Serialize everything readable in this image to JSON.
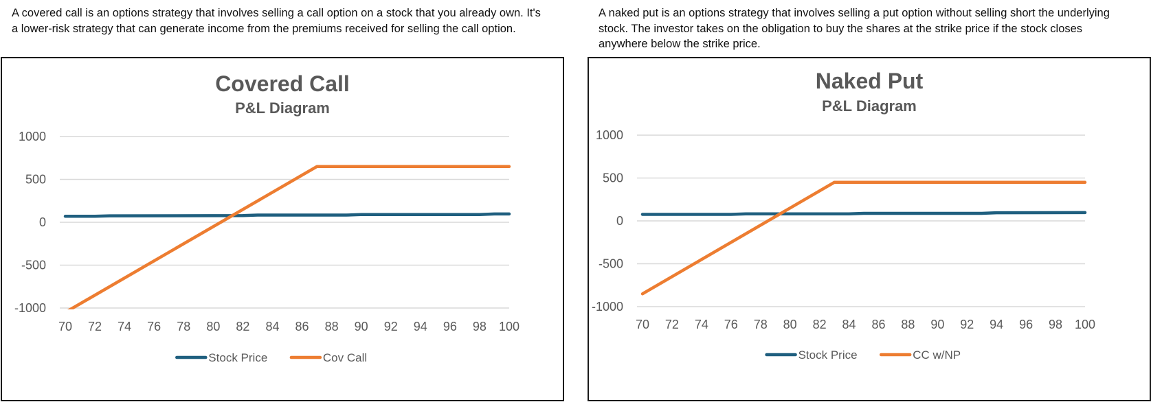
{
  "descriptions": {
    "left": "A covered call is an options strategy that involves selling a call option on a stock that you already own. It's a lower-risk strategy that can generate income from the premiums received for selling the call option.",
    "right": "A naked put is an options strategy that involves selling a put option without selling short the underlying stock. The investor takes on the obligation to buy the shares at the strike price if the stock closes anywhere below the strike price."
  },
  "colors": {
    "stock": "#1f5f7f",
    "strategy": "#ed7d31",
    "grid": "#d9d9d9",
    "text": "#595959"
  },
  "chart_data": [
    {
      "type": "line",
      "title": "Covered Call",
      "subtitle": "P&L Diagram",
      "xlabel": "",
      "ylabel": "",
      "xlim": [
        70,
        100
      ],
      "ylim": [
        -1000,
        1000
      ],
      "x_ticks": [
        "70",
        "72",
        "74",
        "76",
        "78",
        "80",
        "82",
        "84",
        "86",
        "88",
        "90",
        "92",
        "94",
        "96",
        "98",
        "100"
      ],
      "y_ticks": [
        "1000",
        "500",
        "0",
        "-500",
        "-1000"
      ],
      "grid": true,
      "legend_position": "bottom",
      "series": [
        {
          "name": "Stock Price",
          "color": "#1f5f7f",
          "x": [
            70,
            72,
            73,
            82,
            83,
            89,
            90,
            98,
            99,
            100
          ],
          "y": [
            70,
            70,
            75,
            78,
            84,
            84,
            90,
            90,
            97,
            97
          ]
        },
        {
          "name": "Cov Call",
          "color": "#ed7d31",
          "x": [
            70,
            87,
            100
          ],
          "y": [
            -1050,
            650,
            650
          ]
        }
      ]
    },
    {
      "type": "line",
      "title": "Naked Put",
      "subtitle": "P&L Diagram",
      "xlabel": "",
      "ylabel": "",
      "xlim": [
        70,
        100
      ],
      "ylim": [
        -1000,
        1000
      ],
      "x_ticks": [
        "70",
        "72",
        "74",
        "76",
        "78",
        "80",
        "82",
        "84",
        "86",
        "88",
        "90",
        "92",
        "94",
        "96",
        "98",
        "100"
      ],
      "y_ticks": [
        "1000",
        "500",
        "0",
        "-500",
        "-1000"
      ],
      "grid": true,
      "legend_position": "bottom",
      "series": [
        {
          "name": "Stock Price",
          "color": "#1f5f7f",
          "x": [
            70,
            76,
            77,
            84,
            85,
            93,
            94,
            100
          ],
          "y": [
            76,
            76,
            82,
            82,
            88,
            88,
            95,
            97
          ]
        },
        {
          "name": "CC w/NP",
          "color": "#ed7d31",
          "x": [
            70,
            82,
            83,
            100
          ],
          "y": [
            -850,
            350,
            450,
            450
          ]
        }
      ]
    }
  ]
}
